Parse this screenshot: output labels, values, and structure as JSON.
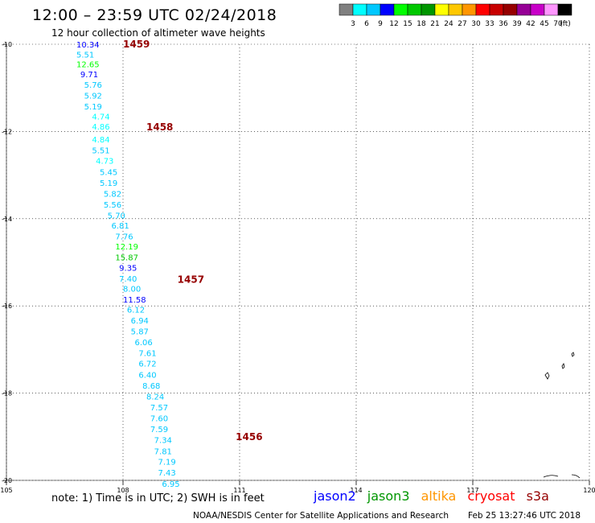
{
  "header": {
    "title": "12:00 – 23:59 UTC 02/24/2018",
    "subtitle": "12 hour collection of altimeter wave heights"
  },
  "colorbar": {
    "colors": [
      "#808080",
      "#00ffff",
      "#00c8ff",
      "#0000ff",
      "#00ff00",
      "#00c800",
      "#009600",
      "#ffff00",
      "#ffc800",
      "#ff9600",
      "#ff0000",
      "#c80000",
      "#960000",
      "#960096",
      "#c800c8",
      "#ff96ff",
      "#000000"
    ],
    "labels": [
      "3",
      "6",
      "9",
      "12",
      "15",
      "18",
      "21",
      "24",
      "27",
      "30",
      "33",
      "36",
      "39",
      "42",
      "45",
      "70",
      "(ft)"
    ]
  },
  "map": {
    "lon_range": [
      105,
      120
    ],
    "lat_range": [
      -20,
      -10
    ],
    "x_tick_labels": [
      "105",
      "108",
      "111",
      "114",
      "117",
      "120"
    ],
    "y_tick_labels": [
      "-10",
      "-12",
      "-14",
      "-16",
      "-18",
      "-20"
    ],
    "grid": true,
    "track_time_labels": [
      {
        "text": "1459",
        "lat": -10.0,
        "lon": 108.0
      },
      {
        "text": "1458",
        "lat": -11.9,
        "lon": 108.6
      },
      {
        "text": "1457",
        "lat": -15.4,
        "lon": 109.4
      },
      {
        "text": "1456",
        "lat": -19.0,
        "lon": 110.9
      }
    ],
    "swh_points": [
      {
        "v": "10.34",
        "lat": -10.0,
        "lon": 106.8,
        "c": "#0000ff"
      },
      {
        "v": "5.51",
        "lat": -10.23,
        "lon": 106.8,
        "c": "#00c8ff"
      },
      {
        "v": "12.65",
        "lat": -10.45,
        "lon": 106.8,
        "c": "#00ff00"
      },
      {
        "v": "9.71",
        "lat": -10.68,
        "lon": 106.9,
        "c": "#0000ff"
      },
      {
        "v": "5.76",
        "lat": -10.92,
        "lon": 107.0,
        "c": "#00c8ff"
      },
      {
        "v": "5.92",
        "lat": -11.17,
        "lon": 107.0,
        "c": "#00c8ff"
      },
      {
        "v": "5.19",
        "lat": -11.42,
        "lon": 107.0,
        "c": "#00c8ff"
      },
      {
        "v": "4.74",
        "lat": -11.65,
        "lon": 107.2,
        "c": "#00ffff"
      },
      {
        "v": "4.86",
        "lat": -11.88,
        "lon": 107.2,
        "c": "#00ffff"
      },
      {
        "v": "4.84",
        "lat": -12.18,
        "lon": 107.2,
        "c": "#00ffff"
      },
      {
        "v": "5.51",
        "lat": -12.43,
        "lon": 107.2,
        "c": "#00c8ff"
      },
      {
        "v": "4.73",
        "lat": -12.67,
        "lon": 107.3,
        "c": "#00ffff"
      },
      {
        "v": "5.45",
        "lat": -12.92,
        "lon": 107.4,
        "c": "#00c8ff"
      },
      {
        "v": "5.19",
        "lat": -13.17,
        "lon": 107.4,
        "c": "#00c8ff"
      },
      {
        "v": "5.82",
        "lat": -13.42,
        "lon": 107.5,
        "c": "#00c8ff"
      },
      {
        "v": "5.56",
        "lat": -13.67,
        "lon": 107.5,
        "c": "#00c8ff"
      },
      {
        "v": "5.70",
        "lat": -13.92,
        "lon": 107.6,
        "c": "#00c8ff"
      },
      {
        "v": "6.81",
        "lat": -14.15,
        "lon": 107.7,
        "c": "#00c8ff"
      },
      {
        "v": "7.76",
        "lat": -14.4,
        "lon": 107.8,
        "c": "#00c8ff"
      },
      {
        "v": "12.19",
        "lat": -14.63,
        "lon": 107.8,
        "c": "#00ff00"
      },
      {
        "v": "15.87",
        "lat": -14.88,
        "lon": 107.8,
        "c": "#00c800"
      },
      {
        "v": "9.35",
        "lat": -15.12,
        "lon": 107.9,
        "c": "#0000ff"
      },
      {
        "v": "7.40",
        "lat": -15.37,
        "lon": 107.9,
        "c": "#00c8ff"
      },
      {
        "v": "8.00",
        "lat": -15.6,
        "lon": 108.0,
        "c": "#00c8ff"
      },
      {
        "v": "11.58",
        "lat": -15.85,
        "lon": 108.0,
        "c": "#0000ff"
      },
      {
        "v": "6.12",
        "lat": -16.08,
        "lon": 108.1,
        "c": "#00c8ff"
      },
      {
        "v": "6.94",
        "lat": -16.33,
        "lon": 108.2,
        "c": "#00c8ff"
      },
      {
        "v": "5.87",
        "lat": -16.58,
        "lon": 108.2,
        "c": "#00c8ff"
      },
      {
        "v": "6.06",
        "lat": -16.83,
        "lon": 108.3,
        "c": "#00c8ff"
      },
      {
        "v": "7.61",
        "lat": -17.08,
        "lon": 108.4,
        "c": "#00c8ff"
      },
      {
        "v": "6.72",
        "lat": -17.32,
        "lon": 108.4,
        "c": "#00c8ff"
      },
      {
        "v": "6.40",
        "lat": -17.57,
        "lon": 108.4,
        "c": "#00c8ff"
      },
      {
        "v": "8.68",
        "lat": -17.82,
        "lon": 108.5,
        "c": "#00c8ff"
      },
      {
        "v": "8.24",
        "lat": -18.07,
        "lon": 108.6,
        "c": "#00c8ff"
      },
      {
        "v": "7.57",
        "lat": -18.32,
        "lon": 108.7,
        "c": "#00c8ff"
      },
      {
        "v": "7.60",
        "lat": -18.57,
        "lon": 108.7,
        "c": "#00c8ff"
      },
      {
        "v": "7.59",
        "lat": -18.82,
        "lon": 108.7,
        "c": "#00c8ff"
      },
      {
        "v": "7.34",
        "lat": -19.07,
        "lon": 108.8,
        "c": "#00c8ff"
      },
      {
        "v": "7.81",
        "lat": -19.33,
        "lon": 108.8,
        "c": "#00c8ff"
      },
      {
        "v": "7.19",
        "lat": -19.57,
        "lon": 108.9,
        "c": "#00c8ff"
      },
      {
        "v": "7.43",
        "lat": -19.82,
        "lon": 108.9,
        "c": "#00c8ff"
      },
      {
        "v": "6.95",
        "lat": -20.07,
        "lon": 109.0,
        "c": "#00c8ff"
      }
    ]
  },
  "footer": {
    "note": "note: 1) Time is in UTC; 2) SWH is in feet",
    "legend": [
      {
        "label": "jason2",
        "color": "#0000ff"
      },
      {
        "label": "jason3",
        "color": "#009600"
      },
      {
        "label": "altika",
        "color": "#ff9600"
      },
      {
        "label": "cryosat",
        "color": "#ff0000"
      },
      {
        "label": "s3a",
        "color": "#960000"
      }
    ],
    "credit": "NOAA/NESDIS Center for Satellite Applications and Research",
    "timestamp": "Feb 25 13:27:46 UTC 2018"
  }
}
